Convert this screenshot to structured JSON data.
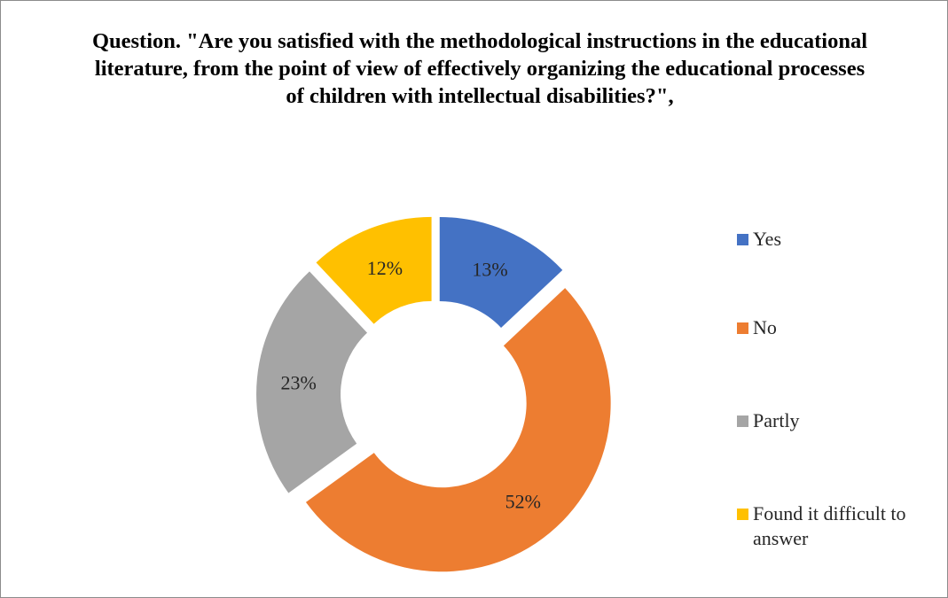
{
  "chart_data": {
    "type": "pie",
    "variant": "exploded-doughnut",
    "title": "Question. \"Are you satisfied with the methodological instructions in the educational literature, from the point of view of effectively organizing the educational processes of children with intellectual disabilities?\",",
    "categories": [
      "Yes",
      "No",
      "Partly",
      "Found it difficult to answer"
    ],
    "values": [
      13,
      52,
      23,
      12
    ],
    "labels": [
      "13%",
      "52%",
      "23%",
      "12%"
    ],
    "colors": [
      "#4472C4",
      "#ED7D31",
      "#A5A5A5",
      "#FFC000"
    ],
    "legend_position": "right"
  },
  "legend": {
    "items": [
      {
        "label": "Yes",
        "color": "#4472C4"
      },
      {
        "label": "No",
        "color": "#ED7D31"
      },
      {
        "label": "Partly",
        "color": "#A5A5A5"
      },
      {
        "label": "Found it difficult to answer",
        "color": "#FFC000"
      }
    ]
  }
}
